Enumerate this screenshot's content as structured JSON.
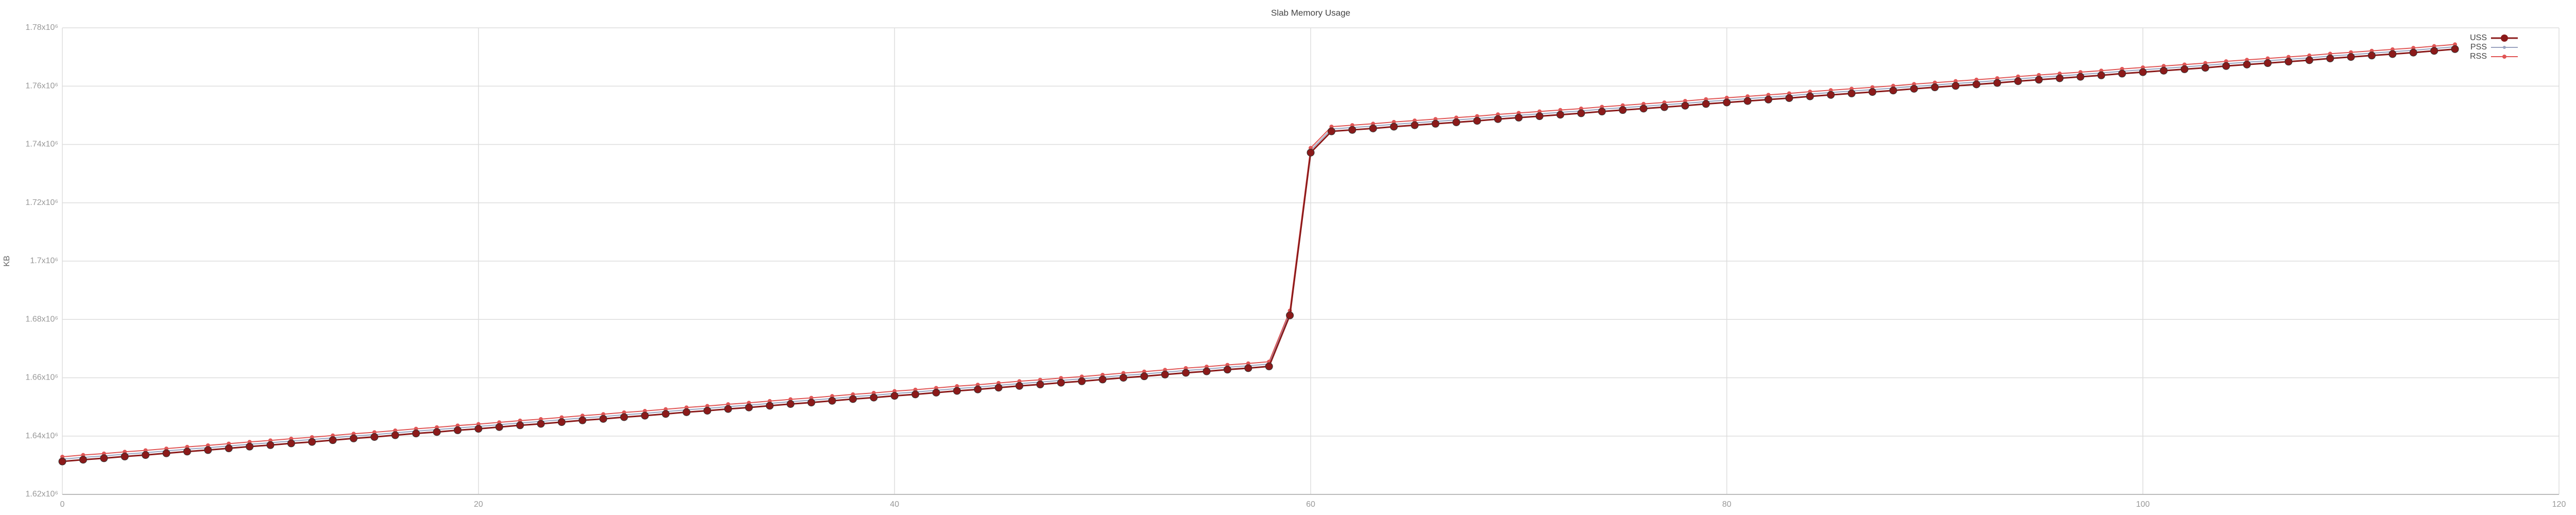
{
  "chart_data": {
    "type": "line",
    "title": "Slab Memory Usage",
    "y_label": "KB",
    "x": [
      0,
      1,
      2,
      3,
      4,
      5,
      6,
      7,
      8,
      9,
      10,
      11,
      12,
      13,
      14,
      15,
      16,
      17,
      18,
      19,
      20,
      21,
      22,
      23,
      24,
      25,
      26,
      27,
      28,
      29,
      30,
      31,
      32,
      33,
      34,
      35,
      36,
      37,
      38,
      39,
      40,
      41,
      42,
      43,
      44,
      45,
      46,
      47,
      48,
      49,
      50,
      51,
      52,
      53,
      54,
      55,
      56,
      57,
      58,
      59,
      60,
      61,
      62,
      63,
      64,
      65,
      66,
      67,
      68,
      69,
      70,
      71,
      72,
      73,
      74,
      75,
      76,
      77,
      78,
      79,
      80,
      81,
      82,
      83,
      84,
      85,
      86,
      87,
      88,
      89,
      90,
      91,
      92,
      93,
      94,
      95,
      96,
      97,
      98,
      99,
      100,
      101,
      102,
      103,
      104,
      105,
      106,
      107,
      108,
      109,
      110,
      111,
      112,
      113,
      114,
      115
    ],
    "series": [
      {
        "name": "USS",
        "color": "#8b1a1a",
        "values": [
          1631300,
          1631900,
          1632400,
          1633000,
          1633500,
          1634100,
          1634700,
          1635200,
          1635800,
          1636400,
          1636900,
          1637500,
          1638000,
          1638600,
          1639200,
          1639700,
          1640300,
          1640900,
          1641400,
          1642000,
          1642500,
          1643100,
          1643700,
          1644200,
          1644800,
          1645400,
          1645900,
          1646500,
          1647000,
          1647600,
          1648200,
          1648700,
          1649300,
          1649800,
          1650400,
          1651000,
          1651500,
          1652100,
          1652700,
          1653200,
          1653800,
          1654300,
          1654900,
          1655500,
          1656000,
          1656600,
          1657200,
          1657700,
          1658300,
          1658800,
          1659400,
          1660000,
          1660500,
          1661100,
          1661700,
          1662200,
          1662800,
          1663300,
          1663900,
          1681400,
          1737200,
          1744500,
          1745000,
          1745500,
          1746100,
          1746600,
          1747100,
          1747600,
          1748100,
          1748700,
          1749200,
          1749700,
          1750200,
          1750700,
          1751300,
          1751800,
          1752300,
          1752800,
          1753300,
          1753900,
          1754400,
          1754900,
          1755400,
          1755900,
          1756500,
          1757000,
          1757500,
          1758000,
          1758500,
          1759100,
          1759600,
          1760100,
          1760600,
          1761100,
          1761700,
          1762200,
          1762700,
          1763200,
          1763700,
          1764300,
          1764800,
          1765300,
          1765800,
          1766300,
          1766900,
          1767400,
          1767900,
          1768400,
          1768900,
          1769500,
          1770000,
          1770500,
          1771000,
          1771500,
          1772100,
          1772700
        ]
      },
      {
        "name": "PSS",
        "color": "#9aa3c0",
        "values": [
          1632100,
          1632700,
          1633200,
          1633800,
          1634300,
          1634900,
          1635500,
          1636000,
          1636600,
          1637200,
          1637700,
          1638300,
          1638800,
          1639400,
          1640000,
          1640500,
          1641100,
          1641700,
          1642200,
          1642800,
          1643300,
          1643900,
          1644500,
          1645000,
          1645600,
          1646200,
          1646700,
          1647300,
          1647800,
          1648400,
          1649000,
          1649500,
          1650100,
          1650600,
          1651200,
          1651800,
          1652300,
          1652900,
          1653500,
          1654000,
          1654600,
          1655100,
          1655700,
          1656300,
          1656800,
          1657400,
          1658000,
          1658500,
          1659100,
          1659600,
          1660200,
          1660800,
          1661300,
          1661900,
          1662500,
          1663000,
          1663600,
          1664100,
          1664700,
          1682200,
          1738000,
          1745300,
          1745800,
          1746300,
          1746900,
          1747400,
          1747900,
          1748400,
          1748900,
          1749500,
          1750000,
          1750500,
          1751000,
          1751500,
          1752100,
          1752600,
          1753100,
          1753600,
          1754100,
          1754700,
          1755200,
          1755700,
          1756200,
          1756700,
          1757300,
          1757800,
          1758300,
          1758800,
          1759300,
          1759900,
          1760400,
          1760900,
          1761400,
          1761900,
          1762500,
          1763000,
          1763500,
          1764000,
          1764500,
          1765100,
          1765600,
          1766100,
          1766600,
          1767100,
          1767700,
          1768200,
          1768700,
          1769200,
          1769700,
          1770300,
          1770800,
          1771300,
          1771800,
          1772300,
          1772900,
          1773500
        ]
      },
      {
        "name": "RSS",
        "color": "#e05555",
        "values": [
          1632900,
          1633500,
          1634000,
          1634600,
          1635100,
          1635700,
          1636300,
          1636800,
          1637400,
          1638000,
          1638500,
          1639100,
          1639600,
          1640200,
          1640800,
          1641300,
          1641900,
          1642500,
          1643000,
          1643600,
          1644100,
          1644700,
          1645300,
          1645800,
          1646400,
          1647000,
          1647500,
          1648100,
          1648600,
          1649200,
          1649800,
          1650300,
          1650900,
          1651400,
          1652000,
          1652600,
          1653100,
          1653700,
          1654300,
          1654800,
          1655400,
          1655900,
          1656500,
          1657100,
          1657600,
          1658200,
          1658800,
          1659300,
          1659900,
          1660400,
          1661000,
          1661600,
          1662100,
          1662700,
          1663300,
          1663800,
          1664400,
          1664900,
          1665500,
          1683000,
          1738800,
          1746100,
          1746600,
          1747100,
          1747700,
          1748200,
          1748700,
          1749200,
          1749700,
          1750300,
          1750800,
          1751300,
          1751800,
          1752300,
          1752900,
          1753400,
          1753900,
          1754400,
          1754900,
          1755500,
          1756000,
          1756500,
          1757000,
          1757500,
          1758100,
          1758600,
          1759100,
          1759600,
          1760100,
          1760700,
          1761200,
          1761700,
          1762200,
          1762700,
          1763300,
          1763800,
          1764300,
          1764800,
          1765300,
          1765900,
          1766400,
          1766900,
          1767400,
          1767900,
          1768500,
          1769000,
          1769500,
          1770000,
          1770500,
          1771100,
          1771600,
          1772100,
          1772600,
          1773100,
          1773700,
          1774300
        ]
      }
    ],
    "xlim": [
      0,
      120
    ],
    "xticks": [
      0,
      20,
      40,
      60,
      80,
      100,
      120
    ],
    "ylim": [
      1620000,
      1780000
    ],
    "yticks": [
      {
        "value": 1620000,
        "label": "1.62x10⁶"
      },
      {
        "value": 1640000,
        "label": "1.64x10⁶"
      },
      {
        "value": 1660000,
        "label": "1.66x10⁶"
      },
      {
        "value": 1680000,
        "label": "1.68x10⁶"
      },
      {
        "value": 1700000,
        "label": "1.7x10⁶"
      },
      {
        "value": 1720000,
        "label": "1.72x10⁶"
      },
      {
        "value": 1740000,
        "label": "1.74x10⁶"
      },
      {
        "value": 1760000,
        "label": "1.76x10⁶"
      },
      {
        "value": 1780000,
        "label": "1.78x10⁶"
      }
    ],
    "grid": true,
    "legend": "top-right"
  }
}
